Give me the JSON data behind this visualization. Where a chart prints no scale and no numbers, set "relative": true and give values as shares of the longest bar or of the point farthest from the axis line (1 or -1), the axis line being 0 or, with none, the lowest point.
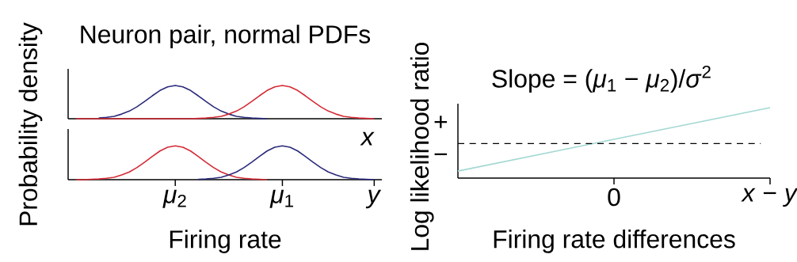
{
  "chart_data": [
    {
      "type": "line",
      "title": "Neuron pair, normal PDFs",
      "xlabel": "*x*",
      "ylabel": "Probability density",
      "relative": true,
      "categories": [
        null,
        null,
        null,
        null,
        null,
        null,
        null,
        null,
        null,
        null,
        null,
        null,
        null,
        null,
        null,
        null,
        null,
        null,
        null,
        null,
        null,
        null,
        null,
        null,
        null,
        null,
        null,
        null,
        null,
        null,
        null,
        null,
        null,
        null,
        null,
        null,
        null,
        null,
        null,
        null
      ],
      "series": [
        {
          "color": "#2a2a7a",
          "values": [
            null,
            null,
            null,
            0.02,
            0.04,
            0.07,
            0.14,
            0.23,
            0.36,
            0.52,
            0.69,
            0.85,
            0.96,
            1,
            0.96,
            0.85,
            0.69,
            0.52,
            0.36,
            0.23,
            0.14,
            0.07,
            0.04,
            0.02,
            0.01,
            0,
            null,
            null,
            null,
            null,
            null,
            null,
            null,
            null,
            null,
            null,
            null,
            null,
            null,
            null
          ]
        },
        {
          "color": "#d42a35",
          "values": [
            0,
            0,
            0,
            0,
            0,
            0,
            0,
            0,
            0,
            0,
            0,
            0,
            0,
            0,
            0,
            0,
            0.01,
            0.02,
            0.04,
            0.07,
            0.14,
            0.23,
            0.36,
            0.52,
            0.69,
            0.85,
            0.96,
            1,
            0.96,
            0.85,
            0.69,
            0.52,
            0.36,
            0.23,
            0.14,
            0.07,
            0.04,
            0.02,
            0.01,
            0
          ]
        }
      ]
    },
    {
      "type": "line",
      "xlabel": "Firing rate",
      "relative": true,
      "categories": [
        null,
        null,
        null,
        null,
        null,
        null,
        null,
        null,
        null,
        null,
        null,
        null,
        null,
        "*μ*$_{2}$",
        null,
        null,
        null,
        null,
        null,
        null,
        null,
        null,
        null,
        null,
        null,
        null,
        null,
        "*μ*$_{1}$",
        null,
        null,
        null,
        null,
        null,
        null,
        null,
        null,
        null,
        null,
        null,
        "*y*"
      ],
      "series": [
        {
          "color": "#d42a35",
          "values": [
            0,
            0,
            0.01,
            0.02,
            0.04,
            0.07,
            0.14,
            0.23,
            0.36,
            0.52,
            0.69,
            0.85,
            0.96,
            1,
            0.96,
            0.85,
            0.69,
            0.52,
            0.36,
            0.23,
            0.14,
            0.07,
            0.04,
            0.02,
            0.01,
            0,
            null,
            null,
            null,
            null,
            null,
            null,
            null,
            null,
            null,
            null,
            null,
            null,
            null,
            null
          ]
        },
        {
          "color": "#2a2a7a",
          "values": [
            null,
            null,
            null,
            null,
            null,
            null,
            null,
            null,
            null,
            null,
            null,
            null,
            null,
            null,
            null,
            null,
            0.01,
            0.02,
            0.04,
            0.07,
            0.14,
            0.23,
            0.36,
            0.52,
            0.69,
            0.85,
            0.96,
            1,
            0.96,
            0.85,
            0.69,
            0.52,
            0.36,
            0.23,
            0.14,
            0.07,
            0.04,
            0.02,
            0.01,
            0
          ]
        }
      ]
    },
    {
      "type": "line",
      "xlabel": "Firing rate differences",
      "ylabel": "Log likelihood ratio",
      "annotations": [
        "Slope = (*μ*$_{1}$ − *μ*$_{2}$)/*σ*$^{2}$",
        "+",
        "−"
      ],
      "relative": true,
      "categories": [
        null,
        "0",
        "*x* − *y*"
      ],
      "values": [
        0.1,
        0.55,
        1
      ],
      "color": "#a3d8d3",
      "ref_lines": [
        {
          "axis": "y",
          "value": 0.49,
          "line_style": "dashed",
          "color": "#000000"
        }
      ]
    }
  ]
}
